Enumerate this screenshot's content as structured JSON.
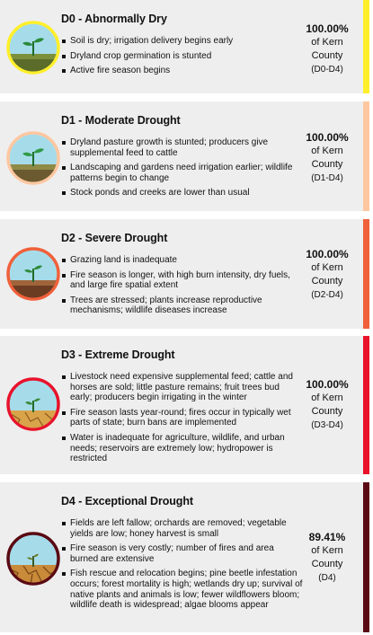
{
  "cards": [
    {
      "title": "D0 - Abnormally Dry",
      "color": "#ffef2a",
      "bullets": [
        "Soil is dry; irrigation delivery begins early",
        "Dryland crop germination is stunted",
        "Active fire season begins"
      ],
      "pct": "100.00%",
      "of_line": "of Kern",
      "county": "County",
      "range": "(D0-D4)"
    },
    {
      "title": "D1 - Moderate Drought",
      "color": "#ffc7a0",
      "bullets": [
        "Dryland pasture growth is stunted; producers give supplemental feed to cattle",
        "Landscaping and gardens need irrigation earlier; wildlife patterns begin to change",
        "Stock ponds and creeks are lower than usual"
      ],
      "pct": "100.00%",
      "of_line": "of Kern",
      "county": "County",
      "range": "(D1-D4)"
    },
    {
      "title": "D2 - Severe Drought",
      "color": "#f0603a",
      "bullets": [
        "Grazing land is inadequate",
        "Fire season is longer, with high burn intensity, dry fuels, and large fire spatial extent",
        "Trees are stressed; plants increase reproductive mechanisms; wildlife diseases increase"
      ],
      "pct": "100.00%",
      "of_line": "of Kern",
      "county": "County",
      "range": "(D2-D4)"
    },
    {
      "title": "D3 - Extreme Drought",
      "color": "#e8122b",
      "bullets": [
        "Livestock need expensive supplemental feed; cattle and horses are sold; little pasture remains; fruit trees bud early; producers begin irrigating in the winter",
        "Fire season lasts year-round; fires occur in typically wet parts of state; burn bans are implemented",
        "Water is inadequate for agriculture, wildlife, and urban needs; reservoirs are extremely low; hydropower is restricted"
      ],
      "pct": "100.00%",
      "of_line": "of Kern",
      "county": "County",
      "range": "(D3-D4)"
    },
    {
      "title": "D4 - Exceptional Drought",
      "color": "#5a0a13",
      "bullets": [
        "Fields are left fallow; orchards are removed; vegetable yields are low; honey harvest is small",
        "Fire season is very costly; number of fires and area burned are extensive",
        "Fish rescue and relocation begins; pine beetle infestation occurs; forest mortality is high; wetlands dry up; survival of native plants and animals is low; fewer wildflowers bloom; wildlife death is widespread; algae blooms appear"
      ],
      "pct": "89.41%",
      "of_line": "of Kern",
      "county": "County",
      "range": "(D4)"
    }
  ]
}
